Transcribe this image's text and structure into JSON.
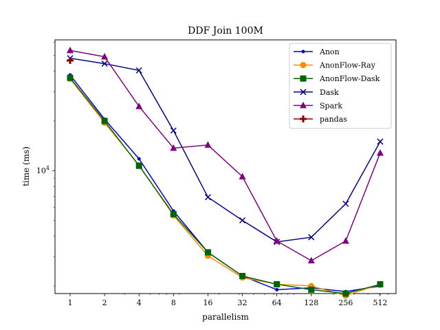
{
  "chart_data": {
    "type": "line",
    "title": "DDF Join 100M",
    "xlabel": "parallelism",
    "ylabel": "time (ms)",
    "xscale": "log2",
    "yscale": "log",
    "x": [
      1,
      2,
      4,
      8,
      16,
      32,
      64,
      128,
      256,
      512
    ],
    "x_ticks": [
      "1",
      "2",
      "4",
      "8",
      "16",
      "32",
      "64",
      "128",
      "256",
      "512"
    ],
    "y_ticks": [
      {
        "value": 10000,
        "label": "10^4"
      }
    ],
    "ylim": [
      1800,
      62000
    ],
    "grid": false,
    "legend_position": "top-right",
    "series": [
      {
        "name": "Anon",
        "color": "#0000cc",
        "marker": "dot",
        "values": [
          38000,
          20500,
          11800,
          5700,
          3200,
          2300,
          1900,
          1950,
          1850,
          2000
        ]
      },
      {
        "name": "AnonFlow-Ray",
        "color": "#ff8c00",
        "marker": "circle",
        "values": [
          36000,
          19500,
          10800,
          5350,
          3050,
          2250,
          2050,
          2000,
          1750,
          2050
        ]
      },
      {
        "name": "AnonFlow-Dask",
        "color": "#006400",
        "marker": "square",
        "values": [
          36500,
          20000,
          10700,
          5450,
          3200,
          2300,
          2050,
          1900,
          1800,
          2050
        ]
      },
      {
        "name": "Dask",
        "color": "#00008b",
        "marker": "x",
        "values": [
          48000,
          44500,
          40500,
          17500,
          6900,
          5000,
          3700,
          3950,
          6300,
          15000
        ]
      },
      {
        "name": "Spark",
        "color": "#800080",
        "marker": "triangle",
        "values": [
          53500,
          49000,
          24500,
          13700,
          14300,
          9200,
          3750,
          2850,
          3750,
          12800
        ]
      },
      {
        "name": "pandas",
        "color": "#8b0000",
        "marker": "plus",
        "values": [
          46500,
          null,
          null,
          null,
          null,
          null,
          null,
          null,
          null,
          null
        ]
      }
    ]
  }
}
